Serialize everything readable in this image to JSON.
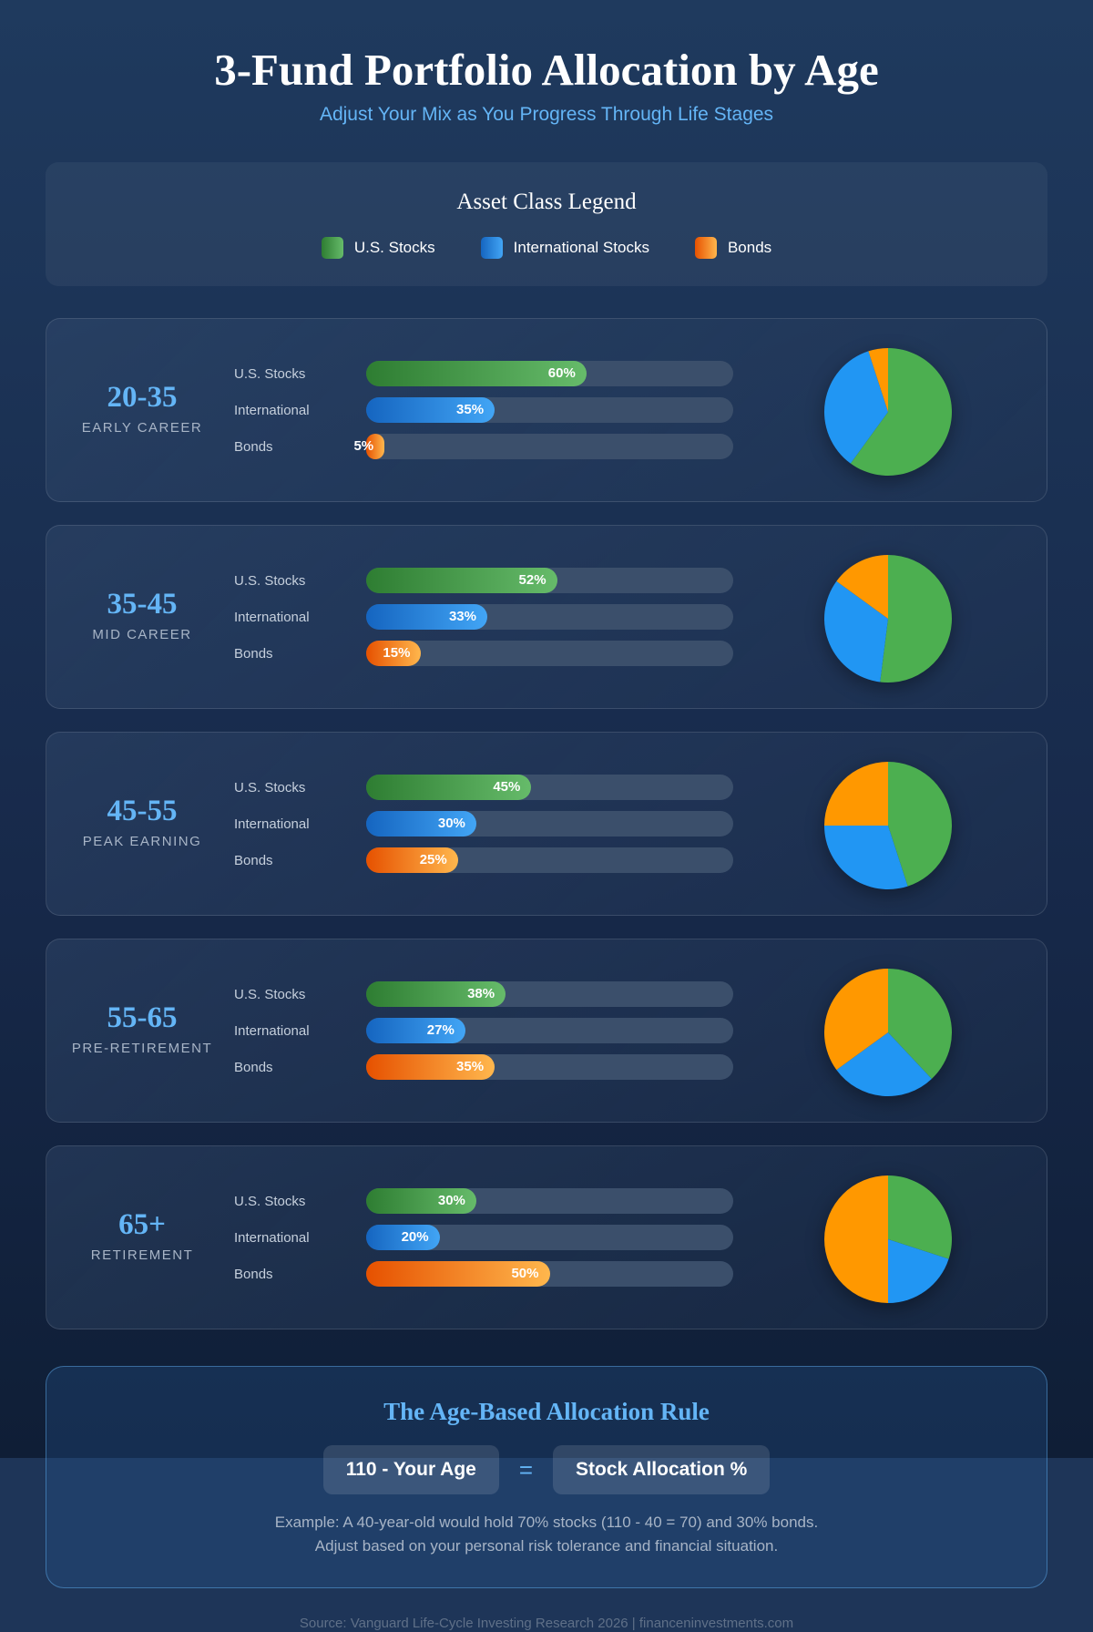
{
  "header": {
    "title": "3-Fund Portfolio Allocation by Age",
    "subtitle": "Adjust Your Mix as You Progress Through Life Stages"
  },
  "legend": {
    "title": "Asset Class Legend",
    "items": [
      {
        "label": "U.S. Stocks",
        "color": "#4caf50"
      },
      {
        "label": "International Stocks",
        "color": "#2196f3"
      },
      {
        "label": "Bonds",
        "color": "#ff9800"
      }
    ]
  },
  "row_labels": [
    "U.S. Stocks",
    "International",
    "Bonds"
  ],
  "stages": [
    {
      "range": "20-35",
      "name": "EARLY CAREER",
      "values": [
        60,
        35,
        5
      ]
    },
    {
      "range": "35-45",
      "name": "MID CAREER",
      "values": [
        52,
        33,
        15
      ]
    },
    {
      "range": "45-55",
      "name": "PEAK EARNING",
      "values": [
        45,
        30,
        25
      ]
    },
    {
      "range": "55-65",
      "name": "PRE-RETIREMENT",
      "values": [
        38,
        27,
        35
      ]
    },
    {
      "range": "65+",
      "name": "RETIREMENT",
      "values": [
        30,
        20,
        50
      ]
    }
  ],
  "rule": {
    "title": "The Age-Based Allocation Rule",
    "left": "110 - Your Age",
    "equals": "=",
    "right": "Stock Allocation %",
    "example": "Example: A 40-year-old would hold 70% stocks (110 - 40 = 70) and 30% bonds.",
    "note": "Adjust based on your personal risk tolerance and financial situation."
  },
  "footer": {
    "source": "Source: Vanguard Life-Cycle Investing Research 2026 | financeninvestments.com"
  }
}
